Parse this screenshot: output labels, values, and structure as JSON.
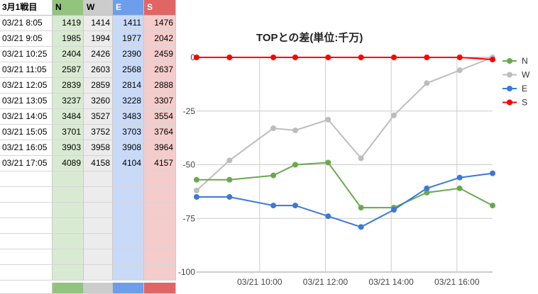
{
  "sheet": {
    "header": [
      "3月1戦目",
      "N",
      "W",
      "E",
      "S"
    ],
    "rows": [
      [
        "03/21 8:05",
        "1419",
        "1414",
        "1411",
        "1476"
      ],
      [
        "03/21 9:05",
        "1985",
        "1994",
        "1977",
        "2042"
      ],
      [
        "03/21 10:25",
        "2404",
        "2426",
        "2390",
        "2459"
      ],
      [
        "03/21 11:05",
        "2587",
        "2603",
        "2568",
        "2637"
      ],
      [
        "03/21 12:05",
        "2839",
        "2859",
        "2814",
        "2888"
      ],
      [
        "03/21 13:05",
        "3237",
        "3260",
        "3228",
        "3307"
      ],
      [
        "03/21 14:05",
        "3484",
        "3527",
        "3483",
        "3554"
      ],
      [
        "03/21 15:05",
        "3701",
        "3752",
        "3703",
        "3764"
      ],
      [
        "03/21 16:05",
        "3903",
        "3958",
        "3908",
        "3964"
      ],
      [
        "03/21 17:05",
        "4089",
        "4158",
        "4104",
        "4157"
      ]
    ],
    "colors": {
      "N": "#93c47d",
      "N_light": "#d9ead3",
      "W": "#cccccc",
      "W_light": "#ececec",
      "E": "#6d9eeb",
      "E_light": "#c9daf8",
      "S": "#e06666",
      "S_light": "#f4cccc"
    }
  },
  "chart_data": {
    "type": "line",
    "title": "TOPとの差(単位:千万)",
    "xlabel": "",
    "ylabel": "",
    "x": [
      "03/21 8:05",
      "03/21 9:05",
      "03/21 10:25",
      "03/21 11:05",
      "03/21 12:05",
      "03/21 13:05",
      "03/21 14:05",
      "03/21 15:05",
      "03/21 16:05",
      "03/21 17:05"
    ],
    "x_ticks": [
      "03/21 10:00",
      "03/21 12:00",
      "03/21 14:00",
      "03/21 16:00"
    ],
    "y_ticks": [
      "0",
      "-25",
      "-50",
      "-75",
      "-100"
    ],
    "ylim": [
      -100,
      0
    ],
    "grid": true,
    "legend_position": "right",
    "series": [
      {
        "name": "N",
        "color": "#6aa84f",
        "values": [
          -57,
          -57,
          -55,
          -50,
          -49,
          -70,
          -70,
          -63,
          -61,
          -69
        ]
      },
      {
        "name": "W",
        "color": "#bdbdbd",
        "values": [
          -62,
          -48,
          -33,
          -34,
          -29,
          -47,
          -27,
          -12,
          -6,
          0
        ]
      },
      {
        "name": "E",
        "color": "#3c78d8",
        "values": [
          -65,
          -65,
          -69,
          -69,
          -74,
          -79,
          -71,
          -61,
          -56,
          -54
        ]
      },
      {
        "name": "S",
        "color": "#ff0000",
        "values": [
          0,
          0,
          0,
          0,
          0,
          0,
          0,
          0,
          0,
          -1
        ]
      }
    ]
  }
}
